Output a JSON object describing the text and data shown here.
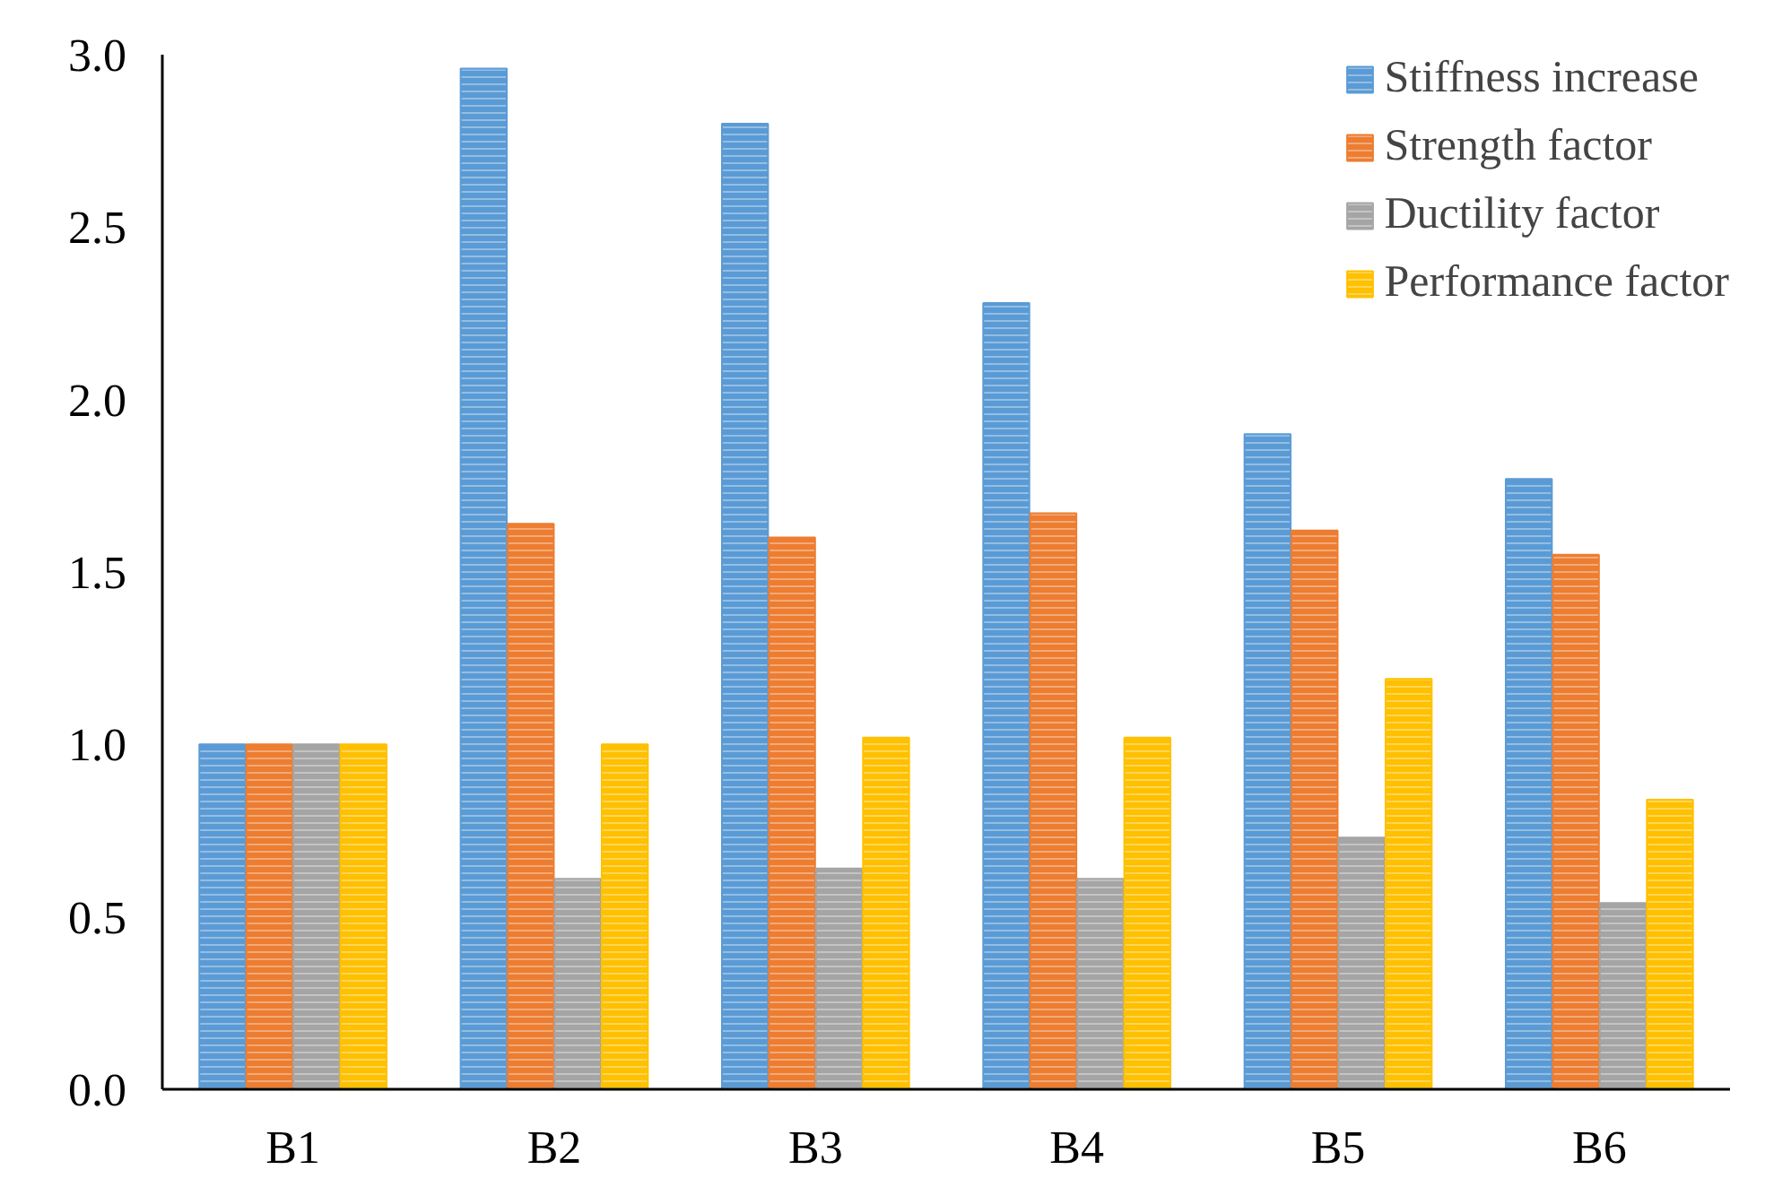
{
  "chart_data": {
    "type": "bar",
    "categories": [
      "B1",
      "B2",
      "B3",
      "B4",
      "B5",
      "B6"
    ],
    "series": [
      {
        "name": "Stiffness increase",
        "color": "#5b9bd5",
        "values": [
          1.0,
          2.96,
          2.8,
          2.28,
          1.9,
          1.77
        ]
      },
      {
        "name": "Strength factor",
        "color": "#ed7d31",
        "values": [
          1.0,
          1.64,
          1.6,
          1.67,
          1.62,
          1.55
        ]
      },
      {
        "name": "Ductility factor",
        "color": "#a5a5a5",
        "values": [
          1.0,
          0.61,
          0.64,
          0.61,
          0.73,
          0.54
        ]
      },
      {
        "name": "Performance factor",
        "color": "#ffc000",
        "values": [
          1.0,
          1.0,
          1.02,
          1.02,
          1.19,
          0.84
        ]
      }
    ],
    "ylim": [
      0,
      3
    ],
    "yticks": [
      {
        "value": 0,
        "label": "0.0"
      },
      {
        "value": 0.5,
        "label": "0.5"
      },
      {
        "value": 1,
        "label": "1.0"
      },
      {
        "value": 1.5,
        "label": "1.5"
      },
      {
        "value": 2,
        "label": "2.0"
      },
      {
        "value": 2.5,
        "label": "2.5"
      },
      {
        "value": 3,
        "label": "3.0"
      }
    ],
    "grid": false,
    "legend": "top right"
  }
}
